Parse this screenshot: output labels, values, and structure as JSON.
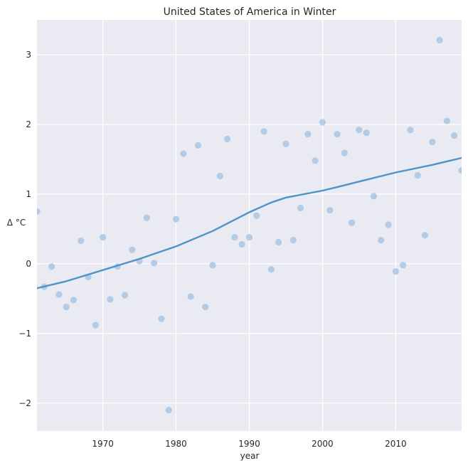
{
  "chart_data": {
    "type": "scatter",
    "title": "United States of America in Winter",
    "xlabel": "year",
    "ylabel": "Δ °C",
    "xlim": [
      1961,
      2019
    ],
    "ylim": [
      -2.4,
      3.5
    ],
    "xticks": [
      1970,
      1980,
      1990,
      2000,
      2010
    ],
    "yticks": [
      -2,
      -1,
      0,
      1,
      2,
      3
    ],
    "grid": true,
    "colors": {
      "background": "#eaeaf2",
      "grid": "#ffffff",
      "points": "#a9c6e2",
      "trend": "#4f94c6"
    },
    "series": [
      {
        "kind": "scatter",
        "points": [
          [
            1961,
            0.75
          ],
          [
            1962,
            -0.33
          ],
          [
            1963,
            -0.04
          ],
          [
            1964,
            -0.44
          ],
          [
            1965,
            -0.62
          ],
          [
            1966,
            -0.52
          ],
          [
            1967,
            0.33
          ],
          [
            1968,
            -0.19
          ],
          [
            1969,
            -0.88
          ],
          [
            1970,
            0.38
          ],
          [
            1971,
            -0.51
          ],
          [
            1972,
            -0.04
          ],
          [
            1973,
            -0.45
          ],
          [
            1974,
            0.2
          ],
          [
            1975,
            0.04
          ],
          [
            1976,
            0.66
          ],
          [
            1977,
            0.01
          ],
          [
            1978,
            -0.79
          ],
          [
            1979,
            -2.1
          ],
          [
            1980,
            0.64
          ],
          [
            1981,
            1.58
          ],
          [
            1982,
            -0.47
          ],
          [
            1983,
            1.7
          ],
          [
            1984,
            -0.62
          ],
          [
            1985,
            -0.02
          ],
          [
            1986,
            1.26
          ],
          [
            1987,
            1.79
          ],
          [
            1988,
            0.38
          ],
          [
            1989,
            0.28
          ],
          [
            1990,
            0.38
          ],
          [
            1991,
            0.69
          ],
          [
            1992,
            1.9
          ],
          [
            1993,
            -0.08
          ],
          [
            1994,
            0.31
          ],
          [
            1995,
            1.72
          ],
          [
            1996,
            0.34
          ],
          [
            1997,
            0.8
          ],
          [
            1998,
            1.86
          ],
          [
            1999,
            1.48
          ],
          [
            2000,
            2.03
          ],
          [
            2001,
            0.77
          ],
          [
            2002,
            1.86
          ],
          [
            2003,
            1.59
          ],
          [
            2004,
            0.59
          ],
          [
            2005,
            1.92
          ],
          [
            2006,
            1.88
          ],
          [
            2007,
            0.97
          ],
          [
            2008,
            0.34
          ],
          [
            2009,
            0.56
          ],
          [
            2010,
            -0.11
          ],
          [
            2011,
            -0.02
          ],
          [
            2012,
            1.92
          ],
          [
            2013,
            1.27
          ],
          [
            2014,
            0.41
          ],
          [
            2015,
            1.75
          ],
          [
            2016,
            3.21
          ],
          [
            2017,
            2.05
          ],
          [
            2018,
            1.84
          ],
          [
            2019,
            1.34
          ]
        ]
      },
      {
        "kind": "line",
        "points": [
          [
            1961,
            -0.35
          ],
          [
            1965,
            -0.25
          ],
          [
            1970,
            -0.09
          ],
          [
            1975,
            0.07
          ],
          [
            1980,
            0.25
          ],
          [
            1985,
            0.47
          ],
          [
            1990,
            0.74
          ],
          [
            1993,
            0.88
          ],
          [
            1995,
            0.95
          ],
          [
            2000,
            1.05
          ],
          [
            2002,
            1.1
          ],
          [
            2005,
            1.18
          ],
          [
            2010,
            1.31
          ],
          [
            2015,
            1.42
          ],
          [
            2019,
            1.52
          ]
        ]
      }
    ]
  }
}
